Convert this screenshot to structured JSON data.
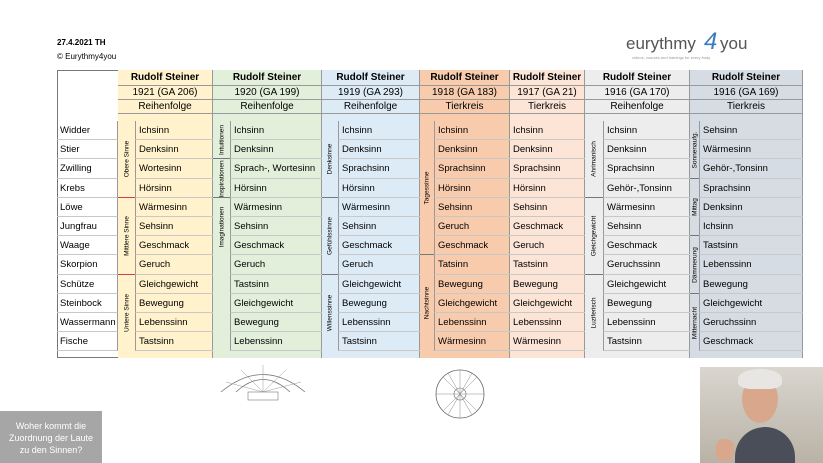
{
  "header": {
    "date": "27.4.2021 TH",
    "copyright": "© Eurythmy4you"
  },
  "logo": {
    "parts": [
      "eurythmy",
      "4",
      "you"
    ],
    "tagline": "videos, courses and trainings for every body"
  },
  "table": {
    "signs": [
      "Widder",
      "Stier",
      "Zwilling",
      "Krebs",
      "Löwe",
      "Jungfrau",
      "Waage",
      "Skorpion",
      "Schütze",
      "Steinbock",
      "Wassermann",
      "Fische"
    ],
    "columns": [
      {
        "author": "Rudolf Steiner",
        "source": "1921 (GA 206)",
        "order": "Reihenfolge",
        "color": "#fff2cc",
        "groups": [
          "Obere Sinne",
          "Mittlere Sinne",
          "Untere Sinne"
        ],
        "senses": [
          "Ichsinn",
          "Denksinn",
          "Wortesinn",
          "Hörsinn",
          "Wärmesinn",
          "Sehsinn",
          "Geschmack",
          "Geruch",
          "Gleichgewicht",
          "Bewegung",
          "Lebenssinn",
          "Tastsinn"
        ]
      },
      {
        "author": "Rudolf Steiner",
        "source": "1920 (GA 199)",
        "order": "Reihenfolge",
        "color": "#e2efda",
        "groups": [
          "Intuitionen",
          "Inspirationen",
          "Imaginationen"
        ],
        "senses": [
          "Ichsinn",
          "Denksinn",
          "Sprach-, Wortesinn",
          "Hörsinn",
          "Wärmesinn",
          "Sehsinn",
          "Geschmack",
          "Geruch",
          "Tastsinn",
          "Gleichgewicht",
          "Bewegung",
          "Lebenssinn"
        ]
      },
      {
        "author": "Rudolf Steiner",
        "source": "1919 (GA 293)",
        "order": "Reihenfolge",
        "color": "#ddebf7",
        "groups": [
          "Denksinne",
          "Gefühlssinne",
          "Willenssinne"
        ],
        "senses": [
          "Ichsinn",
          "Denksinn",
          "Sprachsinn",
          "Hörsinn",
          "Wärmesinn",
          "Sehsinn",
          "Geschmack",
          "Geruch",
          "Gleichgewicht",
          "Bewegung",
          "Lebenssinn",
          "Tastsinn"
        ]
      },
      {
        "author": "Rudolf Steiner",
        "source": "1918 (GA 183)",
        "order": "Tierkreis",
        "color": "#f8cbad",
        "groups": [
          "Tagessinne",
          "Nachtsinne"
        ],
        "senses": [
          "Ichsinn",
          "Denksinn",
          "Sprachsinn",
          "Hörsinn",
          "Sehsinn",
          "Geruch",
          "Geschmack",
          "Tatsinn",
          "Bewegung",
          "Gleichgewicht",
          "Lebenssinn",
          "Wärmesinn"
        ]
      },
      {
        "author": "Rudolf Steiner",
        "source": "1917 (GA 21)",
        "order": "Tierkreis",
        "color": "#fce4d6",
        "groups": [],
        "senses": [
          "Ichsinn",
          "Denksinn",
          "Sprachsinn",
          "Hörsinn",
          "Sehsinn",
          "Geschmack",
          "Geruch",
          "Tastsinn",
          "Bewegung",
          "Gleichgewicht",
          "Lebenssinn",
          "Wärmesinn"
        ]
      },
      {
        "author": "Rudolf Steiner",
        "source": "1916 (GA 170)",
        "order": "Reihenfolge",
        "color": "#ededed",
        "groups": [
          "Ahrimanisch",
          "Gleichgewicht",
          "Luziferisch"
        ],
        "senses": [
          "Ichsinn",
          "Denksinn",
          "Sprachsinn",
          "Gehör-,Tonsinn",
          "Wärmesinn",
          "Sehsinn",
          "Geschmack",
          "Geruchssinn",
          "Gleichgewicht",
          "Bewegung",
          "Lebenssinn",
          "Tastsinn"
        ]
      },
      {
        "author": "Rudolf Steiner",
        "source": "1916 (GA 169)",
        "order": "Tierkreis",
        "color": "#d6dce4",
        "groups": [
          "Sonnenaufg.",
          "Mittag",
          "Dämmerung",
          "Mitternacht"
        ],
        "senses": [
          "Sehsinn",
          "Wärmesinn",
          "Gehör-,Tonsinn",
          "Sprachsinn",
          "Denksinn",
          "Ichsinn",
          "Tastsinn",
          "Lebenssinn",
          "Bewegung",
          "Gleichgewicht",
          "Geruchssinn",
          "Geschmack"
        ]
      }
    ]
  },
  "caption": [
    "Woher kommt die",
    "Zuordnung der Laute",
    "zu den Sinnen?"
  ]
}
